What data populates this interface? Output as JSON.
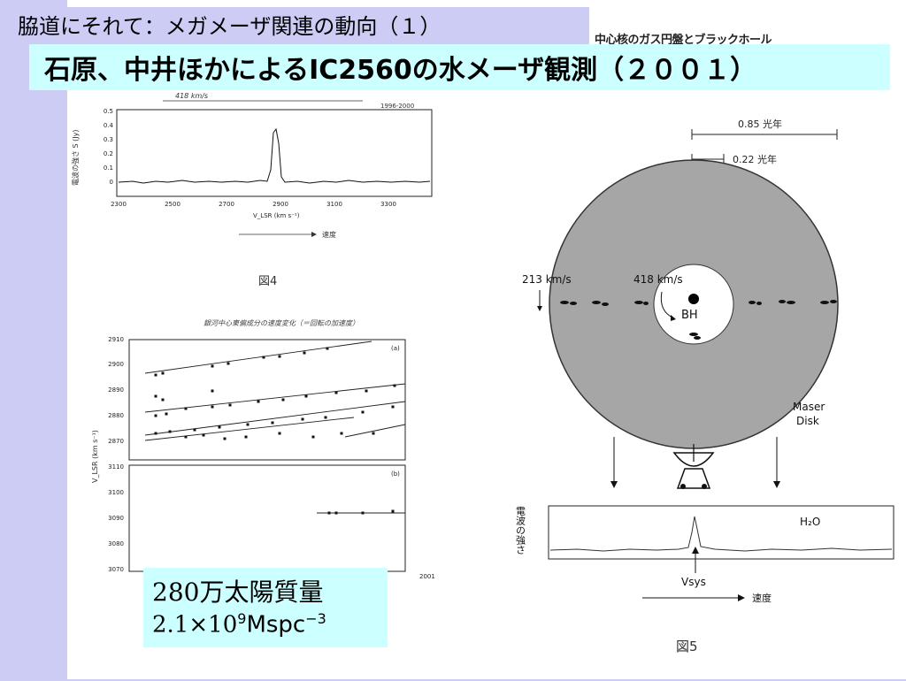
{
  "slide": {
    "title": "脇道にそれて：メガメーザ関連の動向（１）",
    "cut_text": "中心核のガス円盤とブラックホール",
    "subtitle": "石原、中井ほかによるIC2560の水メーザ観測（２００１）"
  },
  "fig4": {
    "caption": "図4",
    "ylabel": "電波の強さ S (Jy)",
    "xlabel": "V_LSR (km s⁻¹)",
    "speed_label": "速度",
    "span_label": "418 km/s",
    "date_label": "1996-2000",
    "y_ticks": [
      "0.5",
      "0.4",
      "0.3",
      "0.2",
      "0.1",
      "0"
    ],
    "x_ticks": [
      "2300",
      "2500",
      "2700",
      "2900",
      "3100",
      "3300"
    ]
  },
  "velocity_fig": {
    "title": "銀河中心東偏成分の速度変化（＝回転の加速度）",
    "ylabel": "V_LSR (km s⁻¹)",
    "panel_a_label": "(a)",
    "panel_b_label": "(b)",
    "a_ticks": [
      "2910",
      "2900",
      "2890",
      "2880",
      "2870"
    ],
    "b_ticks": [
      "3110",
      "3100",
      "3090",
      "3080",
      "3070"
    ],
    "year_label": "2001"
  },
  "fig5": {
    "caption": "図5",
    "scale1": "0.85 光年",
    "scale2": "0.22 光年",
    "outer_speed": "213 km/s",
    "inner_speed": "418 km/s",
    "bh_label": "BH",
    "disk_label_1": "Maser",
    "disk_label_2": "Disk",
    "intensity_label": "電波の強さ",
    "h2o_label": "H₂O",
    "vsys_label": "Vsys",
    "speed_label": "速度"
  },
  "mass": {
    "value_num": "280",
    "value_text": "万太陽質量",
    "density_num": "2.1",
    "density_times": "×",
    "density_base": "10",
    "density_exp": "9",
    "density_unit": "Mspc",
    "density_unit_exp": "−3"
  },
  "colors": {
    "background": "#ccccf5",
    "subtitle_bg": "#ccffff",
    "disk_gray": "#a6a6a6"
  }
}
